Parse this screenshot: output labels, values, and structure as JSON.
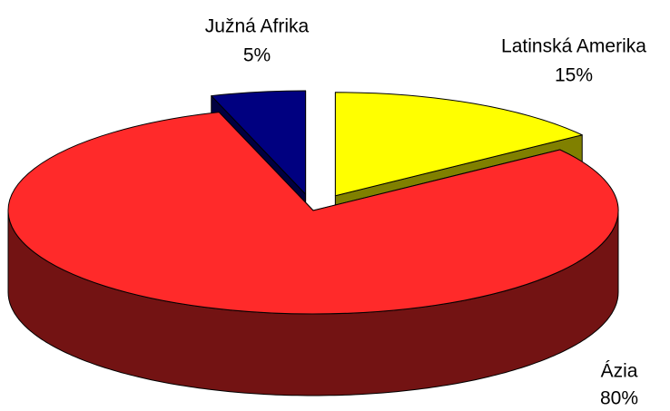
{
  "chart_data": {
    "type": "pie",
    "categories": [
      "Latinská Amerika",
      "Ázia",
      "Južná Afrika"
    ],
    "values": [
      15,
      80,
      5
    ],
    "value_labels": [
      "15%",
      "80%",
      "5%"
    ],
    "colors": [
      "#ffff00",
      "#ff2a2a",
      "#000080"
    ]
  }
}
